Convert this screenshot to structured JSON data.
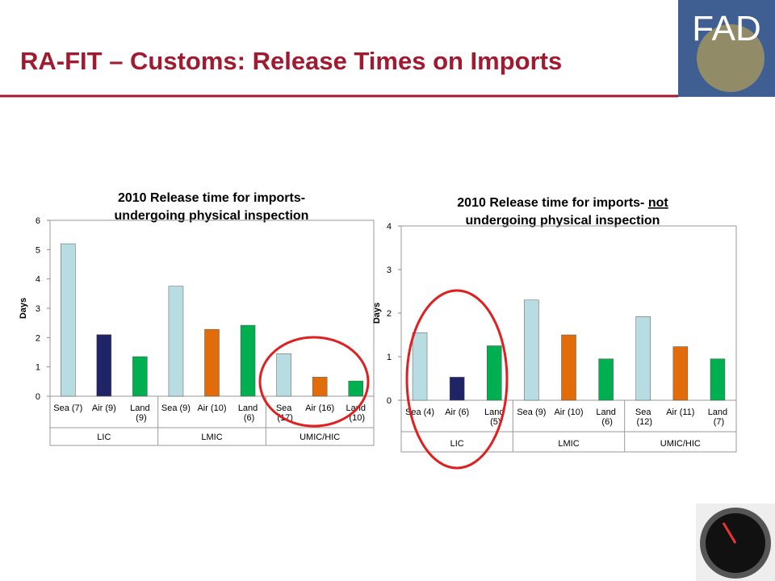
{
  "header": {
    "title": "RA-FIT – Customs: Release Times on Imports",
    "logo_text": "FAD"
  },
  "chart_data": [
    {
      "type": "bar",
      "title": "2010 Release time for imports-",
      "title_line2": "undergoing physical inspection",
      "ylabel": "Days",
      "categories": [
        "Sea (7)",
        "Air (9)",
        "Land\n(9)",
        "Sea (9)",
        "Air (10)",
        "Land\n(6)",
        "Sea\n(17)",
        "Air (16)",
        "Land\n(10)"
      ],
      "groups": [
        "LIC",
        "LMIC",
        "UMIC/HIC"
      ],
      "values": [
        5.2,
        2.1,
        1.35,
        3.75,
        2.28,
        2.42,
        1.45,
        0.65,
        0.52
      ],
      "colors": [
        "#b7dde3",
        "#1f2466",
        "#00b050",
        "#b7dde3",
        "#e36c0a",
        "#00b050",
        "#b7dde3",
        "#e36c0a",
        "#00b050"
      ],
      "ylim": [
        0,
        6
      ],
      "yticks": [
        0,
        1,
        2,
        3,
        4,
        5,
        6
      ]
    },
    {
      "type": "bar",
      "title": "2010 Release time for imports- ",
      "title_emphasis": "not",
      "title_line2": "undergoing physical inspection",
      "ylabel": "Days",
      "categories": [
        "Sea (4)",
        "Air (6)",
        "Land\n(5)",
        "Sea (9)",
        "Air (10)",
        "Land\n(6)",
        "Sea\n(12)",
        "Air (11)",
        "Land\n(7)"
      ],
      "groups": [
        "LIC",
        "LMIC",
        "UMIC/HIC"
      ],
      "values": [
        1.55,
        0.53,
        1.25,
        2.3,
        1.5,
        0.95,
        1.92,
        1.23,
        0.95
      ],
      "colors": [
        "#b7dde3",
        "#1f2466",
        "#00b050",
        "#b7dde3",
        "#e36c0a",
        "#00b050",
        "#b7dde3",
        "#e36c0a",
        "#00b050"
      ],
      "ylim": [
        0,
        4
      ],
      "yticks": [
        0,
        1,
        2,
        3,
        4
      ]
    }
  ]
}
